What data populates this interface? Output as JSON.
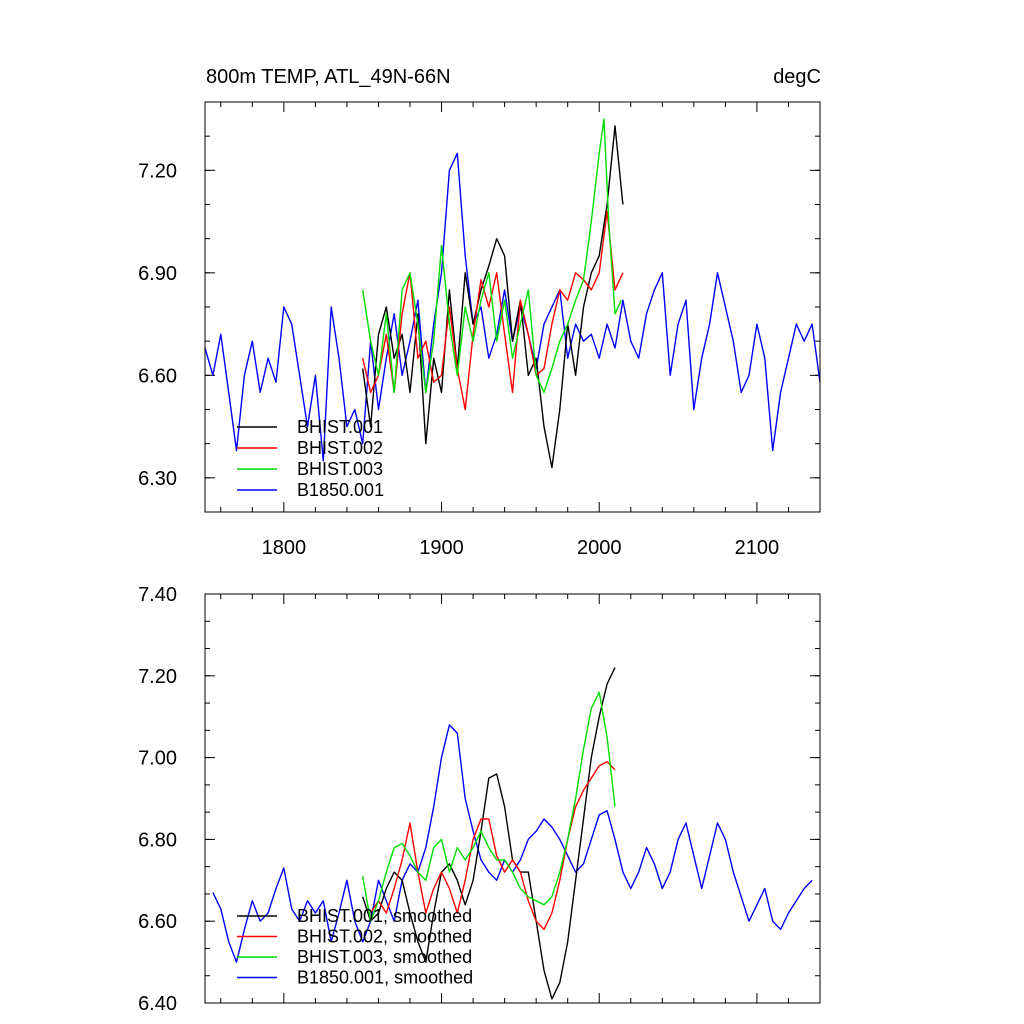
{
  "chart_data": [
    {
      "type": "line",
      "title": "800m TEMP, ATL_49N-66N",
      "units": "degC",
      "xlim": [
        1750,
        2140
      ],
      "ylim": [
        6.2,
        7.4
      ],
      "xticks": [
        1800,
        1900,
        2000,
        2100
      ],
      "xtick_labels": [
        "1800",
        "1900",
        "2000",
        "2100"
      ],
      "yticks": [
        6.3,
        6.6,
        6.9,
        7.2
      ],
      "ytick_labels": [
        "6.30",
        "6.60",
        "6.90",
        "7.20"
      ],
      "legend_position": "bottom-left",
      "series": [
        {
          "name": "BHIST.001",
          "color": "#000000",
          "x": [
            1850,
            1855,
            1860,
            1865,
            1870,
            1875,
            1880,
            1885,
            1890,
            1895,
            1900,
            1905,
            1910,
            1915,
            1920,
            1925,
            1930,
            1935,
            1940,
            1945,
            1950,
            1955,
            1960,
            1965,
            1970,
            1975,
            1980,
            1985,
            1990,
            1995,
            2000,
            2005,
            2010,
            2015
          ],
          "y": [
            6.62,
            6.45,
            6.72,
            6.8,
            6.65,
            6.72,
            6.55,
            6.78,
            6.4,
            6.65,
            6.55,
            6.85,
            6.62,
            6.9,
            6.75,
            6.85,
            6.92,
            7.0,
            6.95,
            6.7,
            6.82,
            6.6,
            6.65,
            6.45,
            6.33,
            6.5,
            6.75,
            6.6,
            6.8,
            6.9,
            6.95,
            7.1,
            7.33,
            7.1
          ]
        },
        {
          "name": "BHIST.002",
          "color": "#ff0000",
          "x": [
            1850,
            1855,
            1860,
            1865,
            1870,
            1875,
            1880,
            1885,
            1890,
            1895,
            1900,
            1905,
            1910,
            1915,
            1920,
            1925,
            1930,
            1935,
            1940,
            1945,
            1950,
            1955,
            1960,
            1965,
            1970,
            1975,
            1980,
            1985,
            1990,
            1995,
            2000,
            2005,
            2010,
            2015
          ],
          "y": [
            6.65,
            6.55,
            6.6,
            6.72,
            6.55,
            6.78,
            6.9,
            6.65,
            6.7,
            6.58,
            6.6,
            6.8,
            6.62,
            6.5,
            6.72,
            6.88,
            6.8,
            6.9,
            6.72,
            6.55,
            6.82,
            6.72,
            6.6,
            6.62,
            6.75,
            6.85,
            6.82,
            6.9,
            6.88,
            6.85,
            6.9,
            7.08,
            6.85,
            6.9
          ]
        },
        {
          "name": "BHIST.003",
          "color": "#00dd00",
          "x": [
            1850,
            1855,
            1860,
            1865,
            1870,
            1875,
            1880,
            1885,
            1890,
            1895,
            1900,
            1905,
            1910,
            1915,
            1920,
            1925,
            1930,
            1935,
            1940,
            1945,
            1950,
            1955,
            1960,
            1965,
            1970,
            1975,
            1980,
            1985,
            1990,
            1995,
            2000,
            2003,
            2006,
            2010,
            2014
          ],
          "y": [
            6.85,
            6.7,
            6.6,
            6.78,
            6.55,
            6.85,
            6.9,
            6.75,
            6.55,
            6.7,
            6.98,
            6.75,
            6.6,
            6.8,
            6.7,
            6.82,
            6.9,
            6.7,
            6.82,
            6.65,
            6.75,
            6.85,
            6.6,
            6.55,
            6.62,
            6.7,
            6.75,
            6.82,
            6.88,
            7.05,
            7.25,
            7.35,
            7.05,
            6.78,
            6.82
          ]
        },
        {
          "name": "B1850.001",
          "color": "#0000ff",
          "x": [
            1750,
            1755,
            1760,
            1765,
            1770,
            1775,
            1780,
            1785,
            1790,
            1795,
            1800,
            1805,
            1810,
            1815,
            1820,
            1825,
            1830,
            1835,
            1840,
            1845,
            1850,
            1855,
            1860,
            1865,
            1870,
            1875,
            1880,
            1885,
            1890,
            1895,
            1900,
            1905,
            1910,
            1915,
            1920,
            1925,
            1930,
            1935,
            1940,
            1945,
            1950,
            1955,
            1960,
            1965,
            1970,
            1975,
            1980,
            1985,
            1990,
            1995,
            2000,
            2005,
            2010,
            2015,
            2020,
            2025,
            2030,
            2035,
            2040,
            2045,
            2050,
            2055,
            2060,
            2065,
            2070,
            2075,
            2080,
            2085,
            2090,
            2095,
            2100,
            2105,
            2110,
            2115,
            2120,
            2125,
            2130,
            2135,
            2140
          ],
          "y": [
            6.68,
            6.6,
            6.72,
            6.55,
            6.38,
            6.6,
            6.7,
            6.55,
            6.65,
            6.58,
            6.8,
            6.75,
            6.6,
            6.45,
            6.6,
            6.35,
            6.8,
            6.65,
            6.45,
            6.5,
            6.4,
            6.7,
            6.5,
            6.65,
            6.78,
            6.6,
            6.7,
            6.82,
            6.55,
            6.75,
            6.9,
            7.2,
            7.25,
            6.95,
            6.75,
            6.8,
            6.65,
            6.72,
            6.85,
            6.7,
            6.8,
            6.72,
            6.62,
            6.75,
            6.8,
            6.85,
            6.65,
            6.75,
            6.7,
            6.72,
            6.65,
            6.75,
            6.68,
            6.82,
            6.7,
            6.65,
            6.78,
            6.85,
            6.9,
            6.6,
            6.75,
            6.82,
            6.5,
            6.65,
            6.75,
            6.9,
            6.8,
            6.7,
            6.55,
            6.6,
            6.75,
            6.65,
            6.38,
            6.55,
            6.65,
            6.75,
            6.7,
            6.75,
            6.58
          ]
        }
      ]
    },
    {
      "type": "line",
      "xlim": [
        1750,
        2140
      ],
      "ylim": [
        6.4,
        7.4
      ],
      "xticks": [
        1800,
        1900,
        2000,
        2100
      ],
      "yticks": [
        6.4,
        6.6,
        6.8,
        7.0,
        7.2,
        7.4
      ],
      "ytick_labels": [
        "6.40",
        "6.60",
        "6.80",
        "7.00",
        "7.20",
        "7.40"
      ],
      "legend_position": "bottom-left",
      "series": [
        {
          "name": "BHIST.001, smoothed",
          "color": "#000000",
          "x": [
            1850,
            1855,
            1860,
            1865,
            1870,
            1875,
            1880,
            1885,
            1890,
            1895,
            1900,
            1905,
            1910,
            1915,
            1920,
            1925,
            1930,
            1935,
            1940,
            1945,
            1950,
            1955,
            1960,
            1965,
            1970,
            1975,
            1980,
            1985,
            1990,
            1995,
            2000,
            2005,
            2010
          ],
          "y": [
            6.66,
            6.6,
            6.62,
            6.68,
            6.72,
            6.7,
            6.62,
            6.55,
            6.5,
            6.62,
            6.72,
            6.74,
            6.7,
            6.64,
            6.7,
            6.82,
            6.95,
            6.96,
            6.88,
            6.75,
            6.72,
            6.72,
            6.6,
            6.48,
            6.41,
            6.45,
            6.55,
            6.7,
            6.85,
            7.0,
            7.1,
            7.18,
            7.22
          ]
        },
        {
          "name": "BHIST.002, smoothed",
          "color": "#ff0000",
          "x": [
            1855,
            1860,
            1865,
            1870,
            1875,
            1880,
            1885,
            1890,
            1895,
            1900,
            1905,
            1910,
            1915,
            1920,
            1925,
            1930,
            1935,
            1940,
            1945,
            1950,
            1955,
            1960,
            1965,
            1970,
            1975,
            1980,
            1985,
            1990,
            1995,
            2000,
            2005,
            2010
          ],
          "y": [
            6.62,
            6.65,
            6.62,
            6.68,
            6.75,
            6.84,
            6.72,
            6.62,
            6.68,
            6.72,
            6.68,
            6.62,
            6.7,
            6.8,
            6.85,
            6.85,
            6.76,
            6.72,
            6.75,
            6.72,
            6.65,
            6.6,
            6.58,
            6.62,
            6.7,
            6.8,
            6.88,
            6.92,
            6.95,
            6.98,
            6.99,
            6.97
          ]
        },
        {
          "name": "BHIST.003, smoothed",
          "color": "#00dd00",
          "x": [
            1850,
            1855,
            1860,
            1865,
            1870,
            1875,
            1880,
            1885,
            1890,
            1895,
            1900,
            1905,
            1910,
            1915,
            1920,
            1925,
            1930,
            1935,
            1940,
            1945,
            1950,
            1955,
            1960,
            1965,
            1970,
            1975,
            1980,
            1985,
            1990,
            1995,
            2000,
            2005,
            2010
          ],
          "y": [
            6.71,
            6.6,
            6.65,
            6.72,
            6.78,
            6.79,
            6.76,
            6.72,
            6.7,
            6.78,
            6.8,
            6.72,
            6.78,
            6.75,
            6.78,
            6.82,
            6.78,
            6.75,
            6.75,
            6.72,
            6.68,
            6.66,
            6.65,
            6.64,
            6.66,
            6.72,
            6.8,
            6.9,
            7.02,
            7.12,
            7.16,
            7.05,
            6.88
          ]
        },
        {
          "name": "B1850.001, smoothed",
          "color": "#0000ff",
          "x": [
            1755,
            1760,
            1765,
            1770,
            1775,
            1780,
            1785,
            1790,
            1795,
            1800,
            1805,
            1810,
            1815,
            1820,
            1825,
            1830,
            1835,
            1840,
            1845,
            1850,
            1855,
            1860,
            1865,
            1870,
            1875,
            1880,
            1885,
            1890,
            1895,
            1900,
            1905,
            1910,
            1915,
            1920,
            1925,
            1930,
            1935,
            1940,
            1945,
            1950,
            1955,
            1960,
            1965,
            1970,
            1975,
            1980,
            1985,
            1990,
            1995,
            2000,
            2005,
            2010,
            2015,
            2020,
            2025,
            2030,
            2035,
            2040,
            2045,
            2050,
            2055,
            2060,
            2065,
            2070,
            2075,
            2080,
            2085,
            2090,
            2095,
            2100,
            2105,
            2110,
            2115,
            2120,
            2125,
            2130,
            2135
          ],
          "y": [
            6.67,
            6.63,
            6.55,
            6.5,
            6.58,
            6.65,
            6.6,
            6.62,
            6.68,
            6.73,
            6.63,
            6.6,
            6.65,
            6.62,
            6.65,
            6.55,
            6.62,
            6.7,
            6.6,
            6.55,
            6.6,
            6.7,
            6.65,
            6.6,
            6.7,
            6.74,
            6.72,
            6.78,
            6.88,
            7.0,
            7.08,
            7.06,
            6.9,
            6.82,
            6.75,
            6.72,
            6.7,
            6.75,
            6.72,
            6.75,
            6.8,
            6.82,
            6.85,
            6.83,
            6.8,
            6.76,
            6.72,
            6.74,
            6.8,
            6.86,
            6.87,
            6.8,
            6.72,
            6.68,
            6.72,
            6.78,
            6.74,
            6.68,
            6.72,
            6.8,
            6.84,
            6.76,
            6.68,
            6.76,
            6.84,
            6.8,
            6.72,
            6.66,
            6.6,
            6.64,
            6.68,
            6.6,
            6.58,
            6.62,
            6.65,
            6.68,
            6.7
          ]
        }
      ]
    }
  ]
}
